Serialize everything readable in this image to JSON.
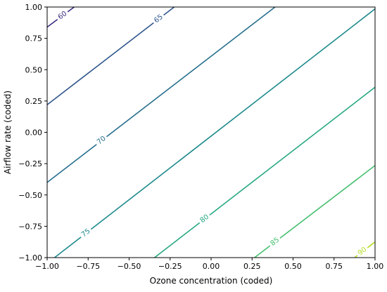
{
  "chart_data": {
    "type": "contour",
    "title": "",
    "xlabel": "Ozone concentration (coded)",
    "ylabel": "Airflow rate (coded)",
    "xlim": [
      -1.0,
      1.0
    ],
    "ylim": [
      -1.0,
      1.0
    ],
    "x_ticks": [
      "−1.00",
      "−0.75",
      "−0.50",
      "−0.25",
      "0.00",
      "0.25",
      "0.50",
      "0.75",
      "1.00"
    ],
    "y_ticks": [
      "−1.00",
      "−0.75",
      "−0.50",
      "−0.25",
      "0.00",
      "0.25",
      "0.50",
      "0.75",
      "1.00"
    ],
    "grid": false,
    "colormap": "viridis",
    "levels": [
      {
        "level": 60,
        "label": "60",
        "color": "#3b2f80",
        "points": [
          [
            -1.0,
            0.84
          ],
          [
            -0.835,
            1.0
          ]
        ],
        "label_at": [
          -0.905,
          0.93
        ]
      },
      {
        "level": 65,
        "label": "65",
        "color": "#2f568c",
        "points": [
          [
            -1.0,
            0.22
          ],
          [
            -0.225,
            1.0
          ]
        ],
        "label_at": [
          -0.32,
          0.905
        ]
      },
      {
        "level": 70,
        "label": "70",
        "color": "#266f8e",
        "points": [
          [
            -1.0,
            -0.4
          ],
          [
            0.39,
            1.0
          ]
        ],
        "label_at": [
          -0.63,
          -0.13
        ]
      },
      {
        "level": 75,
        "label": "75",
        "color": "#1e8a8d",
        "points": [
          [
            -0.955,
            -1.0
          ],
          [
            1.0,
            0.985
          ]
        ],
        "label_at": [
          -0.745,
          -0.835
        ]
      },
      {
        "level": 80,
        "label": "80",
        "color": "#27a882",
        "points": [
          [
            -0.345,
            -1.0
          ],
          [
            1.0,
            0.36
          ]
        ],
        "label_at": [
          -0.04,
          -0.69
        ]
      },
      {
        "level": 85,
        "label": "85",
        "color": "#44bf6f",
        "points": [
          [
            0.265,
            -1.0
          ],
          [
            1.0,
            -0.265
          ]
        ],
        "label_at": [
          0.39,
          -0.875
        ]
      },
      {
        "level": 90,
        "label": "90",
        "color": "#b5de2b",
        "points": [
          [
            0.875,
            -1.0
          ],
          [
            1.0,
            -0.875
          ]
        ],
        "label_at": [
          0.925,
          -0.955
        ]
      }
    ]
  }
}
